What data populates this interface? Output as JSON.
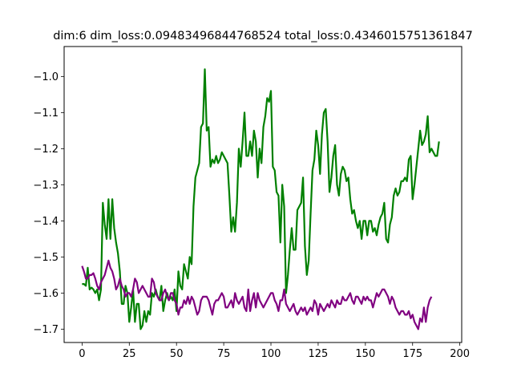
{
  "chart_data": {
    "type": "line",
    "title": "dim:6 dim_loss:0.09483496844768524 total_loss:0.4346015751361847",
    "xlabel": "",
    "ylabel": "",
    "xlim": [
      -9.5,
      201
    ],
    "ylim": [
      -1.737,
      -0.917
    ],
    "x_ticks": [
      0,
      25,
      50,
      75,
      100,
      125,
      150,
      175,
      200
    ],
    "y_ticks": [
      -1.7,
      -1.6,
      -1.5,
      -1.4,
      -1.3,
      -1.2,
      -1.1,
      -1.0
    ],
    "grid": false,
    "legend": "none",
    "series": [
      {
        "color": "#008000",
        "x_start": 0,
        "values": [
          -1.575,
          -1.575,
          -1.58,
          -1.53,
          -1.59,
          -1.585,
          -1.59,
          -1.6,
          -1.59,
          -1.62,
          -1.59,
          -1.35,
          -1.41,
          -1.45,
          -1.34,
          -1.45,
          -1.34,
          -1.42,
          -1.46,
          -1.49,
          -1.54,
          -1.63,
          -1.63,
          -1.58,
          -1.6,
          -1.68,
          -1.64,
          -1.59,
          -1.68,
          -1.63,
          -1.63,
          -1.7,
          -1.69,
          -1.65,
          -1.68,
          -1.65,
          -1.66,
          -1.6,
          -1.61,
          -1.59,
          -1.61,
          -1.62,
          -1.58,
          -1.65,
          -1.62,
          -1.6,
          -1.62,
          -1.61,
          -1.62,
          -1.59,
          -1.65,
          -1.54,
          -1.58,
          -1.59,
          -1.52,
          -1.54,
          -1.56,
          -1.5,
          -1.52,
          -1.36,
          -1.28,
          -1.26,
          -1.24,
          -1.14,
          -1.13,
          -0.98,
          -1.15,
          -1.14,
          -1.25,
          -1.23,
          -1.24,
          -1.22,
          -1.24,
          -1.23,
          -1.21,
          -1.22,
          -1.23,
          -1.24,
          -1.33,
          -1.43,
          -1.39,
          -1.43,
          -1.35,
          -1.2,
          -1.25,
          -1.18,
          -1.1,
          -1.22,
          -1.22,
          -1.18,
          -1.22,
          -1.15,
          -1.18,
          -1.28,
          -1.2,
          -1.24,
          -1.14,
          -1.11,
          -1.06,
          -1.07,
          -1.04,
          -1.25,
          -1.26,
          -1.32,
          -1.33,
          -1.46,
          -1.3,
          -1.36,
          -1.6,
          -1.55,
          -1.48,
          -1.42,
          -1.48,
          -1.48,
          -1.37,
          -1.36,
          -1.35,
          -1.28,
          -1.47,
          -1.55,
          -1.51,
          -1.38,
          -1.26,
          -1.23,
          -1.15,
          -1.19,
          -1.27,
          -1.16,
          -1.1,
          -1.09,
          -1.18,
          -1.32,
          -1.28,
          -1.22,
          -1.19,
          -1.3,
          -1.33,
          -1.27,
          -1.25,
          -1.26,
          -1.29,
          -1.28,
          -1.34,
          -1.38,
          -1.37,
          -1.4,
          -1.42,
          -1.4,
          -1.45,
          -1.4,
          -1.4,
          -1.44,
          -1.4,
          -1.4,
          -1.43,
          -1.42,
          -1.44,
          -1.41,
          -1.39,
          -1.38,
          -1.35,
          -1.45,
          -1.46,
          -1.41,
          -1.39,
          -1.33,
          -1.31,
          -1.33,
          -1.32,
          -1.29,
          -1.29,
          -1.28,
          -1.29,
          -1.23,
          -1.22,
          -1.34,
          -1.3,
          -1.25,
          -1.2,
          -1.15,
          -1.19,
          -1.18,
          -1.16,
          -1.11,
          -1.21,
          -1.2,
          -1.21,
          -1.22,
          -1.22,
          -1.18
        ]
      },
      {
        "color": "#800080",
        "x_start": 0,
        "values": [
          -1.525,
          -1.54,
          -1.56,
          -1.56,
          -1.55,
          -1.55,
          -1.545,
          -1.56,
          -1.58,
          -1.59,
          -1.57,
          -1.56,
          -1.55,
          -1.53,
          -1.51,
          -1.53,
          -1.54,
          -1.56,
          -1.59,
          -1.58,
          -1.56,
          -1.58,
          -1.59,
          -1.61,
          -1.6,
          -1.6,
          -1.61,
          -1.59,
          -1.56,
          -1.57,
          -1.6,
          -1.59,
          -1.58,
          -1.59,
          -1.6,
          -1.61,
          -1.61,
          -1.56,
          -1.57,
          -1.6,
          -1.61,
          -1.62,
          -1.62,
          -1.6,
          -1.59,
          -1.61,
          -1.62,
          -1.6,
          -1.6,
          -1.62,
          -1.63,
          -1.66,
          -1.64,
          -1.64,
          -1.62,
          -1.63,
          -1.61,
          -1.63,
          -1.61,
          -1.62,
          -1.64,
          -1.66,
          -1.65,
          -1.62,
          -1.61,
          -1.61,
          -1.61,
          -1.62,
          -1.64,
          -1.66,
          -1.63,
          -1.62,
          -1.62,
          -1.61,
          -1.6,
          -1.61,
          -1.64,
          -1.64,
          -1.63,
          -1.62,
          -1.64,
          -1.6,
          -1.62,
          -1.63,
          -1.62,
          -1.61,
          -1.64,
          -1.65,
          -1.59,
          -1.65,
          -1.62,
          -1.6,
          -1.64,
          -1.6,
          -1.62,
          -1.63,
          -1.64,
          -1.63,
          -1.62,
          -1.61,
          -1.6,
          -1.6,
          -1.62,
          -1.63,
          -1.65,
          -1.62,
          -1.62,
          -1.59,
          -1.63,
          -1.64,
          -1.65,
          -1.64,
          -1.63,
          -1.65,
          -1.66,
          -1.65,
          -1.64,
          -1.65,
          -1.64,
          -1.66,
          -1.65,
          -1.64,
          -1.65,
          -1.62,
          -1.63,
          -1.66,
          -1.63,
          -1.64,
          -1.65,
          -1.64,
          -1.63,
          -1.64,
          -1.62,
          -1.63,
          -1.64,
          -1.62,
          -1.63,
          -1.63,
          -1.61,
          -1.62,
          -1.62,
          -1.61,
          -1.6,
          -1.62,
          -1.63,
          -1.61,
          -1.61,
          -1.62,
          -1.63,
          -1.61,
          -1.62,
          -1.61,
          -1.62,
          -1.62,
          -1.64,
          -1.62,
          -1.6,
          -1.61,
          -1.6,
          -1.59,
          -1.59,
          -1.6,
          -1.61,
          -1.63,
          -1.61,
          -1.62,
          -1.64,
          -1.65,
          -1.66,
          -1.65,
          -1.65,
          -1.66,
          -1.66,
          -1.65,
          -1.67,
          -1.66,
          -1.68,
          -1.69,
          -1.7,
          -1.67,
          -1.68,
          -1.64,
          -1.68,
          -1.64,
          -1.62,
          -1.61
        ]
      }
    ]
  }
}
